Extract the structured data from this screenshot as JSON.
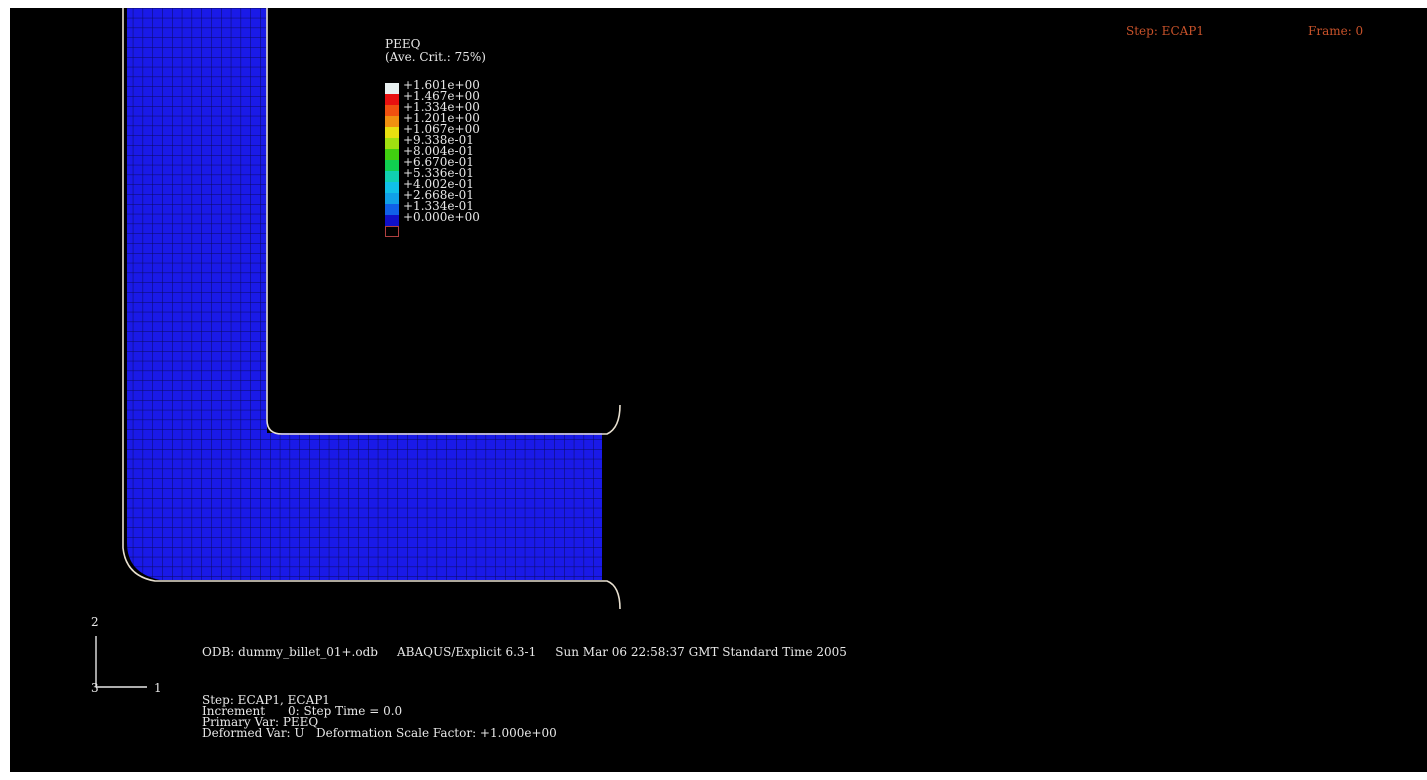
{
  "header": {
    "step_label": "Step: ECAP1",
    "frame_label": "Frame: 0"
  },
  "legend": {
    "title_line1": "PEEQ",
    "title_line2": "(Ave. Crit.: 75%)",
    "labels": [
      "+1.601e+00",
      "+1.467e+00",
      "+1.334e+00",
      "+1.201e+00",
      "+1.067e+00",
      "+9.338e-01",
      "+8.004e-01",
      "+6.670e-01",
      "+5.336e-01",
      "+4.002e-01",
      "+2.668e-01",
      "+1.334e-01",
      "+0.000e+00"
    ],
    "colors": [
      "#e8f0f0",
      "#e81010",
      "#f05010",
      "#f09010",
      "#e8e010",
      "#a0e010",
      "#40d010",
      "#10d050",
      "#10d0b0",
      "#10c0e8",
      "#10a0e8",
      "#1060e8",
      "#1010c8",
      "#000000"
    ]
  },
  "triad": {
    "axis_2": "2",
    "axis_3": "3",
    "axis_1": "1"
  },
  "info": {
    "odb_line": "ODB: dummy_billet_01+.odb     ABAQUS/Explicit 6.3-1     Sun Mar 06 22:58:37 GMT Standard Time 2005",
    "step_line": "Step: ECAP1, ECAP1",
    "increment_line": "Increment      0: Step Time = 0.0",
    "primary_line": "Primary Var: PEEQ",
    "deformed_line": "Deformed Var: U   Deformation Scale Factor: +1.000e+00"
  },
  "colors": {
    "background": "#000000",
    "mesh_fill": "#1a1ae8",
    "mesh_lines": "#0a0a50",
    "die_outline": "#e8e0d0",
    "header_text": "#c8522a",
    "text": "#e8e8e8"
  }
}
